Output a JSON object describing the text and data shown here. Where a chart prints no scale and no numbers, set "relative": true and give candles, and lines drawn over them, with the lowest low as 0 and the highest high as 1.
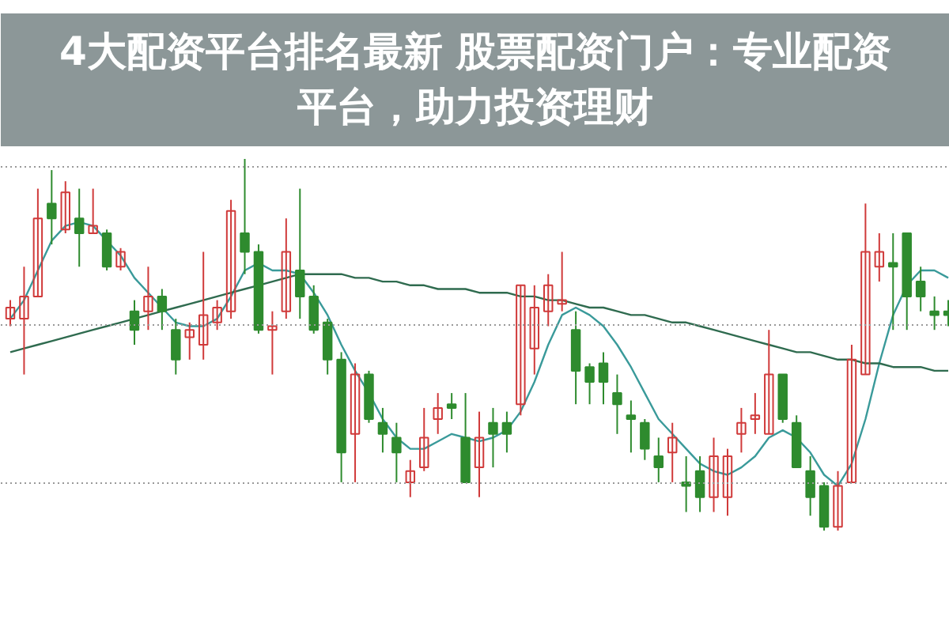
{
  "chart_data": {
    "type": "candlestick",
    "title": "4大配资平台排名最新 股票配资门户：专业配资平台，助力投资理财",
    "relative": true,
    "grid": "y",
    "categories": [
      null,
      null,
      null,
      null,
      null,
      null,
      null,
      null,
      null,
      null,
      null,
      null,
      null,
      null,
      null,
      null,
      null,
      null,
      null,
      null,
      null,
      null,
      null,
      null,
      null,
      null,
      null,
      null,
      null,
      null,
      null,
      null,
      null,
      null,
      null,
      null,
      null,
      null,
      null,
      null,
      null,
      null,
      null,
      null,
      null,
      null,
      null,
      null,
      null,
      null,
      null,
      null,
      null,
      null,
      null,
      null,
      null,
      null,
      null,
      null,
      null,
      null,
      null,
      null,
      null,
      null,
      null,
      null,
      null
    ],
    "ohlc": [
      [
        0.57,
        0.62,
        0.55,
        0.6
      ],
      [
        0.57,
        0.71,
        0.42,
        0.63
      ],
      [
        0.63,
        0.92,
        0.63,
        0.84
      ],
      [
        0.88,
        0.97,
        0.77,
        0.84
      ],
      [
        0.81,
        0.94,
        0.8,
        0.91
      ],
      [
        0.84,
        0.92,
        0.71,
        0.8
      ],
      [
        0.8,
        0.92,
        0.8,
        0.82
      ],
      [
        0.8,
        0.81,
        0.7,
        0.71
      ],
      [
        0.71,
        0.76,
        0.7,
        0.75
      ],
      [
        0.59,
        0.62,
        0.5,
        0.54
      ],
      [
        0.59,
        0.71,
        0.54,
        0.63
      ],
      [
        0.63,
        0.65,
        0.54,
        0.59
      ],
      [
        0.54,
        0.57,
        0.42,
        0.46
      ],
      [
        0.52,
        0.56,
        0.46,
        0.54
      ],
      [
        0.5,
        0.75,
        0.46,
        0.58
      ],
      [
        0.56,
        0.62,
        0.54,
        0.6
      ],
      [
        0.59,
        0.89,
        0.57,
        0.86
      ],
      [
        0.8,
        1.0,
        0.69,
        0.75
      ],
      [
        0.75,
        0.77,
        0.53,
        0.54
      ],
      [
        0.54,
        0.59,
        0.42,
        0.55
      ],
      [
        0.59,
        0.84,
        0.57,
        0.75
      ],
      [
        0.7,
        0.92,
        0.57,
        0.63
      ],
      [
        0.63,
        0.66,
        0.53,
        0.54
      ],
      [
        0.56,
        0.57,
        0.42,
        0.46
      ],
      [
        0.46,
        0.48,
        0.13,
        0.21
      ],
      [
        0.26,
        0.45,
        0.13,
        0.42
      ],
      [
        0.42,
        0.43,
        0.29,
        0.3
      ],
      [
        0.29,
        0.33,
        0.21,
        0.26
      ],
      [
        0.25,
        0.29,
        0.13,
        0.21
      ],
      [
        0.13,
        0.19,
        0.09,
        0.16
      ],
      [
        0.17,
        0.33,
        0.16,
        0.25
      ],
      [
        0.3,
        0.37,
        0.26,
        0.33
      ],
      [
        0.34,
        0.37,
        0.3,
        0.33
      ],
      [
        0.25,
        0.37,
        0.13,
        0.13
      ],
      [
        0.17,
        0.32,
        0.09,
        0.25
      ],
      [
        0.29,
        0.33,
        0.17,
        0.26
      ],
      [
        0.29,
        0.32,
        0.21,
        0.26
      ],
      [
        0.34,
        0.66,
        0.31,
        0.66
      ],
      [
        0.49,
        0.66,
        0.42,
        0.6
      ],
      [
        0.59,
        0.69,
        0.55,
        0.66
      ],
      [
        0.61,
        0.75,
        0.59,
        0.62
      ],
      [
        0.54,
        0.59,
        0.34,
        0.43
      ],
      [
        0.44,
        0.45,
        0.34,
        0.4
      ],
      [
        0.45,
        0.48,
        0.34,
        0.4
      ],
      [
        0.37,
        0.42,
        0.26,
        0.34
      ],
      [
        0.31,
        0.35,
        0.21,
        0.3
      ],
      [
        0.29,
        0.3,
        0.19,
        0.22
      ],
      [
        0.2,
        0.25,
        0.13,
        0.17
      ],
      [
        0.21,
        0.29,
        0.13,
        0.25
      ],
      [
        0.13,
        0.2,
        0.05,
        0.12
      ],
      [
        0.16,
        0.2,
        0.05,
        0.09
      ],
      [
        0.09,
        0.25,
        0.05,
        0.2
      ],
      [
        0.09,
        0.22,
        0.04,
        0.2
      ],
      [
        0.26,
        0.33,
        0.21,
        0.29
      ],
      [
        0.3,
        0.37,
        0.26,
        0.31
      ],
      [
        0.26,
        0.54,
        0.26,
        0.42
      ],
      [
        0.42,
        0.42,
        0.29,
        0.3
      ],
      [
        0.29,
        0.31,
        0.17,
        0.17
      ],
      [
        0.16,
        0.2,
        0.04,
        0.09
      ],
      [
        0.12,
        0.13,
        0.0,
        0.01
      ],
      [
        0.01,
        0.16,
        0.0,
        0.12
      ],
      [
        0.13,
        0.5,
        0.13,
        0.46
      ],
      [
        0.42,
        0.88,
        0.42,
        0.75
      ],
      [
        0.71,
        0.8,
        0.67,
        0.75
      ],
      [
        0.72,
        0.8,
        0.54,
        0.71
      ],
      [
        0.8,
        0.8,
        0.54,
        0.63
      ],
      [
        0.67,
        0.71,
        0.59,
        0.63
      ],
      [
        0.59,
        0.63,
        0.54,
        0.58
      ],
      [
        0.59,
        0.62,
        0.55,
        0.58
      ]
    ],
    "colors": [
      "#d03a3a",
      "#d03a3a",
      "#d03a3a",
      "#2e8b2e",
      "#d03a3a",
      "#2e8b2e",
      "#d03a3a",
      "#2e8b2e",
      "#d03a3a",
      "#2e8b2e",
      "#d03a3a",
      "#2e8b2e",
      "#2e8b2e",
      "#d03a3a",
      "#d03a3a",
      "#d03a3a",
      "#d03a3a",
      "#2e8b2e",
      "#2e8b2e",
      "#d03a3a",
      "#d03a3a",
      "#2e8b2e",
      "#2e8b2e",
      "#2e8b2e",
      "#2e8b2e",
      "#d03a3a",
      "#2e8b2e",
      "#2e8b2e",
      "#2e8b2e",
      "#d03a3a",
      "#d03a3a",
      "#d03a3a",
      "#2e8b2e",
      "#2e8b2e",
      "#d03a3a",
      "#2e8b2e",
      "#2e8b2e",
      "#d03a3a",
      "#d03a3a",
      "#d03a3a",
      "#d03a3a",
      "#2e8b2e",
      "#2e8b2e",
      "#2e8b2e",
      "#2e8b2e",
      "#2e8b2e",
      "#2e8b2e",
      "#2e8b2e",
      "#d03a3a",
      "#2e8b2e",
      "#2e8b2e",
      "#d03a3a",
      "#d03a3a",
      "#d03a3a",
      "#d03a3a",
      "#d03a3a",
      "#2e8b2e",
      "#2e8b2e",
      "#2e8b2e",
      "#2e8b2e",
      "#d03a3a",
      "#d03a3a",
      "#d03a3a",
      "#d03a3a",
      "#2e8b2e",
      "#2e8b2e",
      "#2e8b2e",
      "#2e8b2e",
      "#2e8b2e"
    ],
    "series": [
      {
        "type": "line",
        "color": "#3a9a9a",
        "values": [
          0.57,
          0.62,
          0.7,
          0.78,
          0.82,
          0.83,
          0.82,
          0.78,
          0.74,
          0.68,
          0.64,
          0.6,
          0.56,
          0.55,
          0.55,
          0.57,
          0.63,
          0.7,
          0.72,
          0.7,
          0.7,
          0.69,
          0.64,
          0.58,
          0.5,
          0.43,
          0.37,
          0.3,
          0.25,
          0.22,
          0.22,
          0.24,
          0.26,
          0.25,
          0.24,
          0.25,
          0.27,
          0.32,
          0.4,
          0.5,
          0.58,
          0.6,
          0.58,
          0.55,
          0.5,
          0.44,
          0.37,
          0.3,
          0.26,
          0.22,
          0.18,
          0.16,
          0.15,
          0.17,
          0.2,
          0.25,
          0.27,
          0.25,
          0.21,
          0.15,
          0.12,
          0.18,
          0.3,
          0.45,
          0.58,
          0.66,
          0.7,
          0.7,
          0.68
        ]
      },
      {
        "type": "line",
        "color": "#2f6b4f",
        "values": [
          0.48,
          0.49,
          0.5,
          0.51,
          0.52,
          0.53,
          0.54,
          0.55,
          0.56,
          0.57,
          0.58,
          0.59,
          0.6,
          0.61,
          0.62,
          0.63,
          0.64,
          0.65,
          0.66,
          0.67,
          0.68,
          0.69,
          0.69,
          0.69,
          0.69,
          0.68,
          0.68,
          0.67,
          0.67,
          0.66,
          0.66,
          0.65,
          0.65,
          0.65,
          0.64,
          0.64,
          0.64,
          0.63,
          0.63,
          0.62,
          0.62,
          0.61,
          0.6,
          0.6,
          0.59,
          0.58,
          0.58,
          0.57,
          0.56,
          0.56,
          0.55,
          0.54,
          0.53,
          0.52,
          0.51,
          0.5,
          0.49,
          0.48,
          0.48,
          0.47,
          0.46,
          0.46,
          0.45,
          0.45,
          0.44,
          0.44,
          0.44,
          0.43,
          0.43
        ]
      }
    ]
  }
}
